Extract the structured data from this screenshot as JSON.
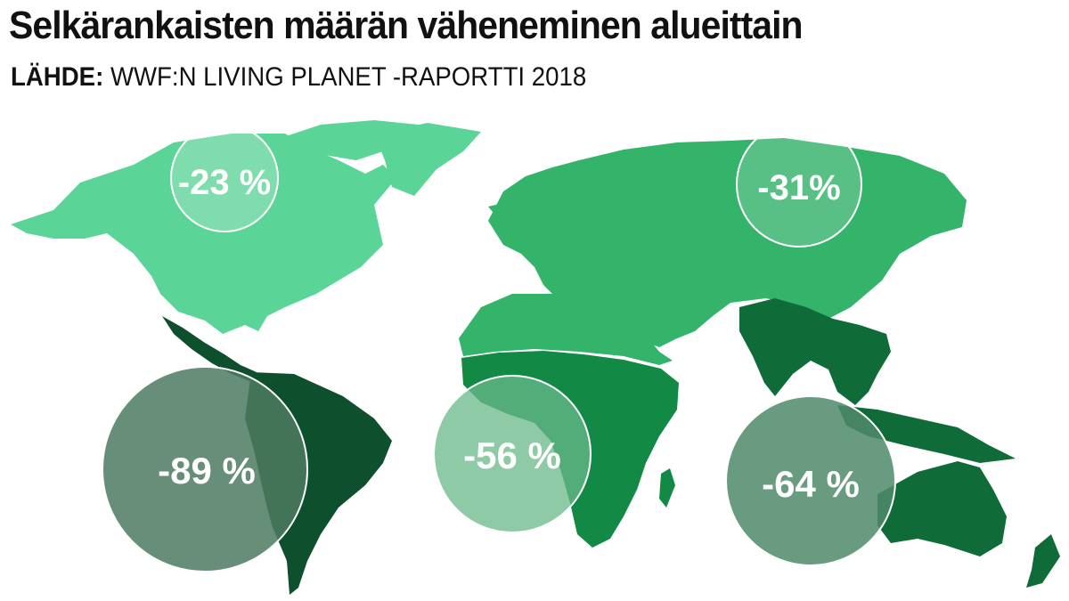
{
  "title": "Selkärankaisten määrän väheneminen alueittain",
  "source": {
    "label": "LÄHDE:",
    "text": "WWF:N LIVING PLANET -RAPORTTI 2018"
  },
  "regions": [
    {
      "id": "north-america",
      "value": "-23 %",
      "color": "#5bd497"
    },
    {
      "id": "eurasia",
      "value": "-31%",
      "color": "#34b36b"
    },
    {
      "id": "latin-america",
      "value": "-89 %",
      "color": "#0e4f2d"
    },
    {
      "id": "africa",
      "value": "-56 %",
      "color": "#128a45"
    },
    {
      "id": "asia-pacific",
      "value": "-64 %",
      "color": "#0f6b37"
    }
  ]
}
